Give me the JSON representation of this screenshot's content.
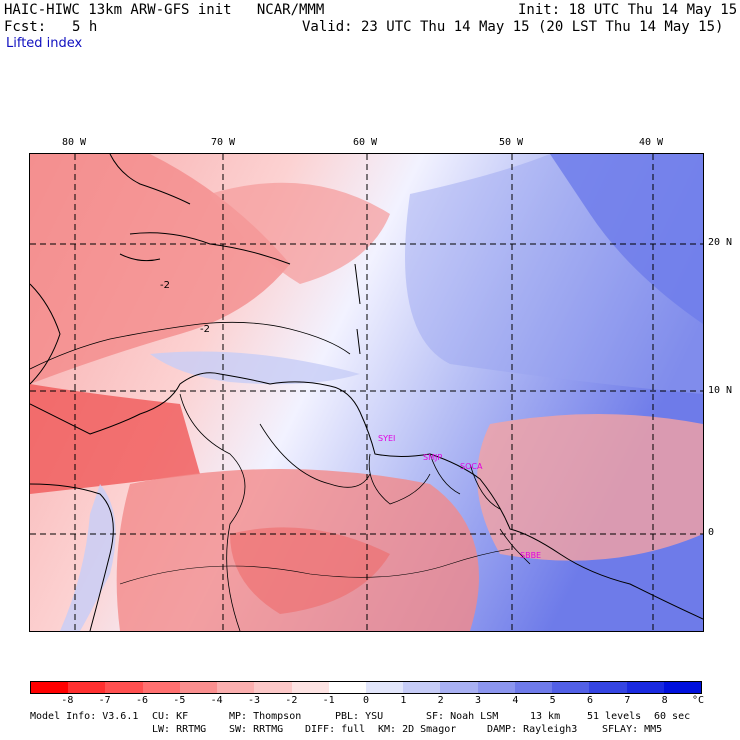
{
  "header": {
    "title": "HAIC-HIWC 13km ARW-GFS init   NCAR/MMM",
    "init": "Init: 18 UTC Thu 14 May 15",
    "fcst_label": "Fcst:",
    "fcst_value": "5 h",
    "valid": "Valid: 23 UTC Thu 14 May 15 (20 LST Thu 14 May 15)",
    "field": "Lifted index"
  },
  "map": {
    "lon_labels": [
      "80 W",
      "70 W",
      "60 W",
      "50 W",
      "40 W"
    ],
    "lat_labels": [
      "20 N",
      "10 N",
      "0"
    ],
    "contour_label": "-2",
    "stations": [
      "SYEI",
      "SMJP",
      "SOCA",
      "SBBE"
    ]
  },
  "colorbar": {
    "colors": [
      "#ff0000",
      "#ff3030",
      "#ff5050",
      "#ff7070",
      "#fa8f8f",
      "#fbafaf",
      "#fcc8c8",
      "#fde3e3",
      "#ffffff",
      "#e2e6fb",
      "#c6ccf7",
      "#a9b1f3",
      "#8c96ef",
      "#6f7bea",
      "#5260e6",
      "#3545e2",
      "#1a2ae0",
      "#0010dd"
    ],
    "tick_labels": [
      "-8",
      "-7",
      "-6",
      "-5",
      "-4",
      "-3",
      "-2",
      "-1",
      "0",
      "1",
      "2",
      "3",
      "4",
      "5",
      "6",
      "7",
      "8"
    ],
    "unit": "°C"
  },
  "footer": {
    "line1": [
      "Model Info: V3.6.1",
      "CU: KF",
      "MP: Thompson",
      "PBL: YSU",
      "SF: Noah LSM",
      "13 km",
      "51 levels",
      "60 sec"
    ],
    "line2": [
      "LW: RRTMG",
      "SW: RRTMG",
      "DIFF: full",
      "KM: 2D Smagor",
      "DAMP: Rayleigh3",
      "SFLAY: MM5"
    ]
  }
}
